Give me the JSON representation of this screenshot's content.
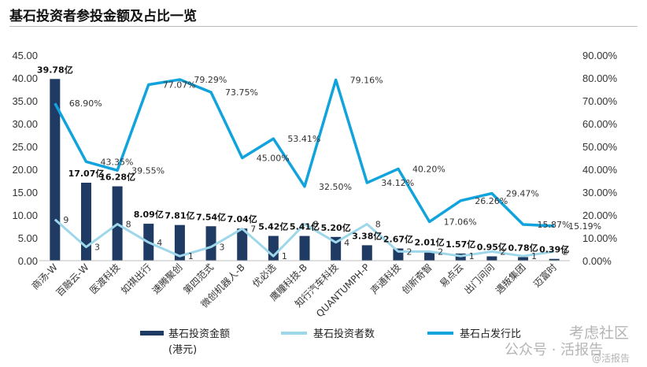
{
  "title": "基石投资者参投金额及占比一览",
  "chart_data": {
    "type": "bar+line",
    "categories": [
      "商汤-W",
      "百融云-W",
      "医渡科技",
      "如祺出行",
      "速腾聚创",
      "第四范式",
      "微创机器人-B",
      "优必选",
      "鹰瞳科技-B",
      "知行汽车科技",
      "QUANTUMPH-P",
      "声通科技",
      "创新奇智",
      "易点云",
      "出门问问",
      "遇叛集团",
      "迈富时"
    ],
    "series": [
      {
        "name": "基石投资金额",
        "axis": "left",
        "type": "bar",
        "values": [
          39.78,
          17.07,
          16.28,
          8.09,
          7.81,
          7.54,
          7.04,
          5.42,
          5.41,
          5.2,
          3.38,
          2.67,
          2.01,
          1.57,
          0.95,
          0.78,
          0.39
        ],
        "labels": [
          "39.78亿",
          "17.07亿",
          "16.28亿",
          "8.09亿",
          "7.81亿",
          "7.54亿",
          "7.04亿",
          "5.42亿",
          "5.41亿",
          "5.20亿",
          "3.38亿",
          "2.67亿",
          "2.01亿",
          "1.57亿",
          "0.95亿",
          "0.78亿",
          "0.39亿"
        ]
      },
      {
        "name": "基石投资者数",
        "axis": "left",
        "type": "line",
        "values": [
          9,
          3,
          8,
          4,
          1,
          3,
          7,
          1,
          8,
          4,
          8,
          2,
          2,
          1,
          2,
          1,
          2
        ],
        "labels": [
          "9",
          "3",
          "8",
          "4",
          "1",
          "3",
          "7",
          "1",
          "8",
          "4",
          "8",
          "2",
          "2",
          "1",
          "2",
          "1",
          "2"
        ]
      },
      {
        "name": "基石占发行比",
        "axis": "right",
        "type": "line",
        "values": [
          68.9,
          43.35,
          39.55,
          77.07,
          79.29,
          73.75,
          45.0,
          53.41,
          32.5,
          79.16,
          34.12,
          40.2,
          17.06,
          26.26,
          29.47,
          15.87,
          15.19
        ],
        "labels": [
          "68.90%",
          "43.35%",
          "39.55%",
          "77.07%",
          "79.29%",
          "73.75%",
          "45.00%",
          "53.41%",
          "32.50%",
          "79.16%",
          "34.12%",
          "40.20%",
          "17.06%",
          "26.26%",
          "29.47%",
          "15.87%",
          "15.19%"
        ]
      }
    ],
    "left_axis": {
      "min": 0,
      "max": 45,
      "step": 5,
      "ticks": [
        "0.00",
        "5.00",
        "10.00",
        "15.00",
        "20.00",
        "25.00",
        "30.00",
        "35.00",
        "40.00",
        "45.00"
      ]
    },
    "right_axis": {
      "min": 0,
      "max": 90,
      "step": 10,
      "ticks": [
        "0.00%",
        "10.00%",
        "20.00%",
        "30.00%",
        "40.00%",
        "50.00%",
        "60.00%",
        "70.00%",
        "80.00%",
        "90.00%"
      ]
    },
    "legend": {
      "position": "bottom",
      "items": [
        "基石投资金额",
        "基石投资者数",
        "基石占发行比"
      ],
      "unit_note": "(港元)"
    }
  },
  "watermark": {
    "text1": "考虑社区",
    "text2": "公众号 · 活报告",
    "text3": "@活报告"
  },
  "colors": {
    "bar": "#1f3b63",
    "count_line": "#9ed6ea",
    "ratio_line": "#11a3dc",
    "axis_text": "#333333",
    "title_rule": "#b9b9b9"
  }
}
